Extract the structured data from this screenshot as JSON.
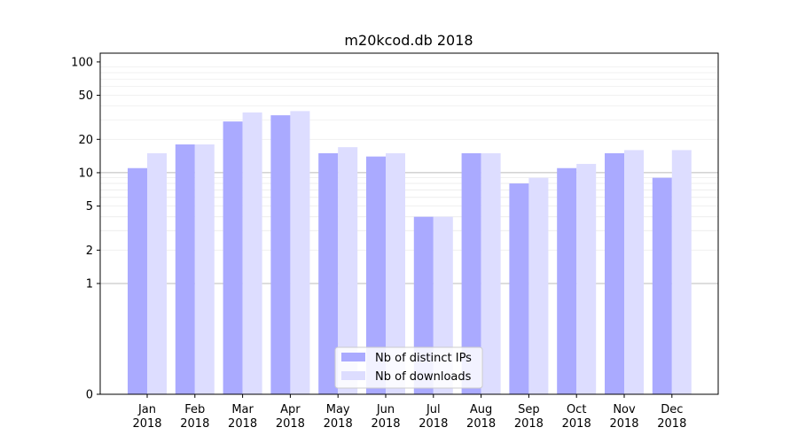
{
  "chart_data": {
    "type": "bar",
    "title": "m20kcod.db 2018",
    "xlabel": "",
    "ylabel": "",
    "y_scale": "symlog",
    "ylim": [
      0,
      120
    ],
    "y_ticks": [
      0,
      1,
      2,
      5,
      10,
      20,
      50,
      100
    ],
    "grid": "horizontal",
    "legend_position": "bottom-center",
    "categories": [
      [
        "Jan",
        "2018"
      ],
      [
        "Feb",
        "2018"
      ],
      [
        "Mar",
        "2018"
      ],
      [
        "Apr",
        "2018"
      ],
      [
        "May",
        "2018"
      ],
      [
        "Jun",
        "2018"
      ],
      [
        "Jul",
        "2018"
      ],
      [
        "Aug",
        "2018"
      ],
      [
        "Sep",
        "2018"
      ],
      [
        "Oct",
        "2018"
      ],
      [
        "Nov",
        "2018"
      ],
      [
        "Dec",
        "2018"
      ]
    ],
    "series": [
      {
        "name": "Nb of distinct IPs",
        "color": "#aaaaff",
        "values": [
          11,
          18,
          29,
          33,
          15,
          14,
          4,
          15,
          8,
          11,
          15,
          9
        ]
      },
      {
        "name": "Nb of downloads",
        "color": "#ddddff",
        "values": [
          15,
          18,
          35,
          36,
          17,
          15,
          4,
          15,
          9,
          12,
          16,
          16
        ]
      }
    ]
  }
}
